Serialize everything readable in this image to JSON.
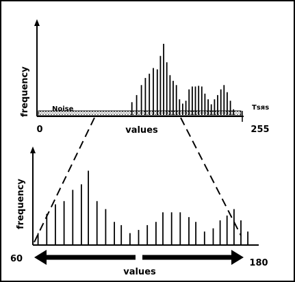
{
  "top_panel": {
    "ylabel": "frequency",
    "xlabel": "values",
    "x_min_label": "0",
    "x_max_label": "255",
    "noise_label": "Noise",
    "threshold_label": "Tѕяs",
    "range": [
      0,
      255
    ],
    "bars": [
      {
        "x": 116,
        "h": 0.18
      },
      {
        "x": 122,
        "h": 0.28
      },
      {
        "x": 128,
        "h": 0.42
      },
      {
        "x": 133,
        "h": 0.52
      },
      {
        "x": 138,
        "h": 0.58
      },
      {
        "x": 143,
        "h": 0.66
      },
      {
        "x": 148,
        "h": 0.64
      },
      {
        "x": 152,
        "h": 0.83
      },
      {
        "x": 156,
        "h": 1.0
      },
      {
        "x": 160,
        "h": 0.74
      },
      {
        "x": 164,
        "h": 0.56
      },
      {
        "x": 168,
        "h": 0.48
      },
      {
        "x": 172,
        "h": 0.42
      },
      {
        "x": 176,
        "h": 0.22
      },
      {
        "x": 180,
        "h": 0.16
      },
      {
        "x": 184,
        "h": 0.2
      },
      {
        "x": 188,
        "h": 0.36
      },
      {
        "x": 192,
        "h": 0.4
      },
      {
        "x": 196,
        "h": 0.4
      },
      {
        "x": 200,
        "h": 0.41
      },
      {
        "x": 204,
        "h": 0.4
      },
      {
        "x": 208,
        "h": 0.3
      },
      {
        "x": 212,
        "h": 0.22
      },
      {
        "x": 216,
        "h": 0.15
      },
      {
        "x": 220,
        "h": 0.22
      },
      {
        "x": 224,
        "h": 0.28
      },
      {
        "x": 228,
        "h": 0.36
      },
      {
        "x": 232,
        "h": 0.42
      },
      {
        "x": 236,
        "h": 0.32
      },
      {
        "x": 240,
        "h": 0.2
      },
      {
        "x": 244,
        "h": 0.08
      }
    ]
  },
  "bottom_panel": {
    "ylabel": "frequency",
    "xlabel": "values",
    "x_min_label": "60",
    "x_max_label": "180",
    "range": [
      60,
      180
    ],
    "bars": [
      {
        "x": 63,
        "h": 0.14
      },
      {
        "x": 68,
        "h": 0.38
      },
      {
        "x": 73,
        "h": 0.5
      },
      {
        "x": 78,
        "h": 0.54
      },
      {
        "x": 83,
        "h": 0.68
      },
      {
        "x": 88,
        "h": 0.75
      },
      {
        "x": 92,
        "h": 0.92
      },
      {
        "x": 97,
        "h": 0.54
      },
      {
        "x": 102,
        "h": 0.44
      },
      {
        "x": 107,
        "h": 0.28
      },
      {
        "x": 111,
        "h": 0.24
      },
      {
        "x": 116,
        "h": 0.14
      },
      {
        "x": 121,
        "h": 0.18
      },
      {
        "x": 126,
        "h": 0.24
      },
      {
        "x": 131,
        "h": 0.28
      },
      {
        "x": 135,
        "h": 0.4
      },
      {
        "x": 140,
        "h": 0.4
      },
      {
        "x": 145,
        "h": 0.4
      },
      {
        "x": 150,
        "h": 0.34
      },
      {
        "x": 154,
        "h": 0.28
      },
      {
        "x": 159,
        "h": 0.16
      },
      {
        "x": 164,
        "h": 0.2
      },
      {
        "x": 168,
        "h": 0.3
      },
      {
        "x": 172,
        "h": 0.36
      },
      {
        "x": 176,
        "h": 0.44
      },
      {
        "x": 180,
        "h": 0.3
      },
      {
        "x": 184,
        "h": 0.16
      }
    ]
  }
}
